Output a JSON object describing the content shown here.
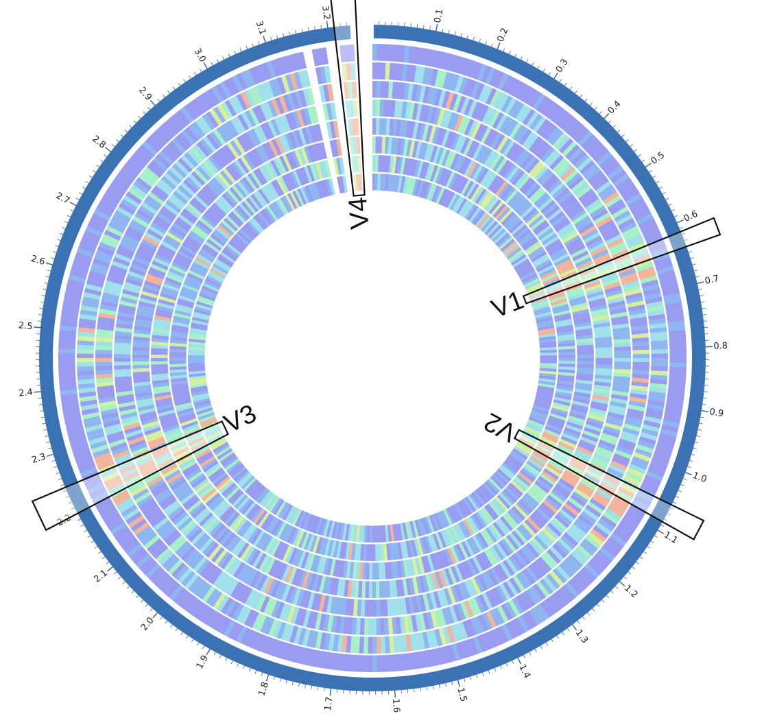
{
  "chart_data": {
    "type": "circular-genome-map",
    "unit": "Mb",
    "genome_length": 3.27,
    "ticks": [
      "0.1",
      "0.2",
      "0.3",
      "0.4",
      "0.5",
      "0.6",
      "0.7",
      "0.8",
      "0.9",
      "1.0",
      "1.1",
      "1.2",
      "1.3",
      "1.4",
      "1.5",
      "1.6",
      "1.7",
      "1.8",
      "1.9",
      "2.0",
      "2.1",
      "2.2",
      "2.3",
      "2.4",
      "2.5",
      "2.6",
      "2.7",
      "2.8",
      "2.9",
      "3.0",
      "3.1",
      "3.2"
    ],
    "tick_values": [
      0.1,
      0.2,
      0.3,
      0.4,
      0.5,
      0.6,
      0.7,
      0.8,
      0.9,
      1.0,
      1.1,
      1.2,
      1.3,
      1.4,
      1.5,
      1.6,
      1.7,
      1.8,
      1.9,
      2.0,
      2.1,
      2.2,
      2.3,
      2.4,
      2.5,
      2.6,
      2.7,
      2.8,
      2.9,
      3.0,
      3.1,
      3.2
    ],
    "track_count": 8,
    "gaps_mb": [
      [
        3.235,
        3.27
      ],
      [
        3.195,
        3.215
      ],
      [
        3.15,
        3.17
      ]
    ],
    "regions": [
      {
        "name": "V1",
        "start_mb": 0.615,
        "end_mb": 0.64
      },
      {
        "name": "V2",
        "start_mb": 1.055,
        "end_mb": 1.085
      },
      {
        "name": "V3",
        "start_mb": 2.2,
        "end_mb": 2.245
      },
      {
        "name": "V4",
        "start_mb": 3.21,
        "end_mb": 3.245
      }
    ],
    "heat_palette": [
      "#9a9cf2",
      "#8fb6f0",
      "#9fe0ea",
      "#a8f0c8",
      "#d6f0a0",
      "#f2b49a"
    ]
  }
}
